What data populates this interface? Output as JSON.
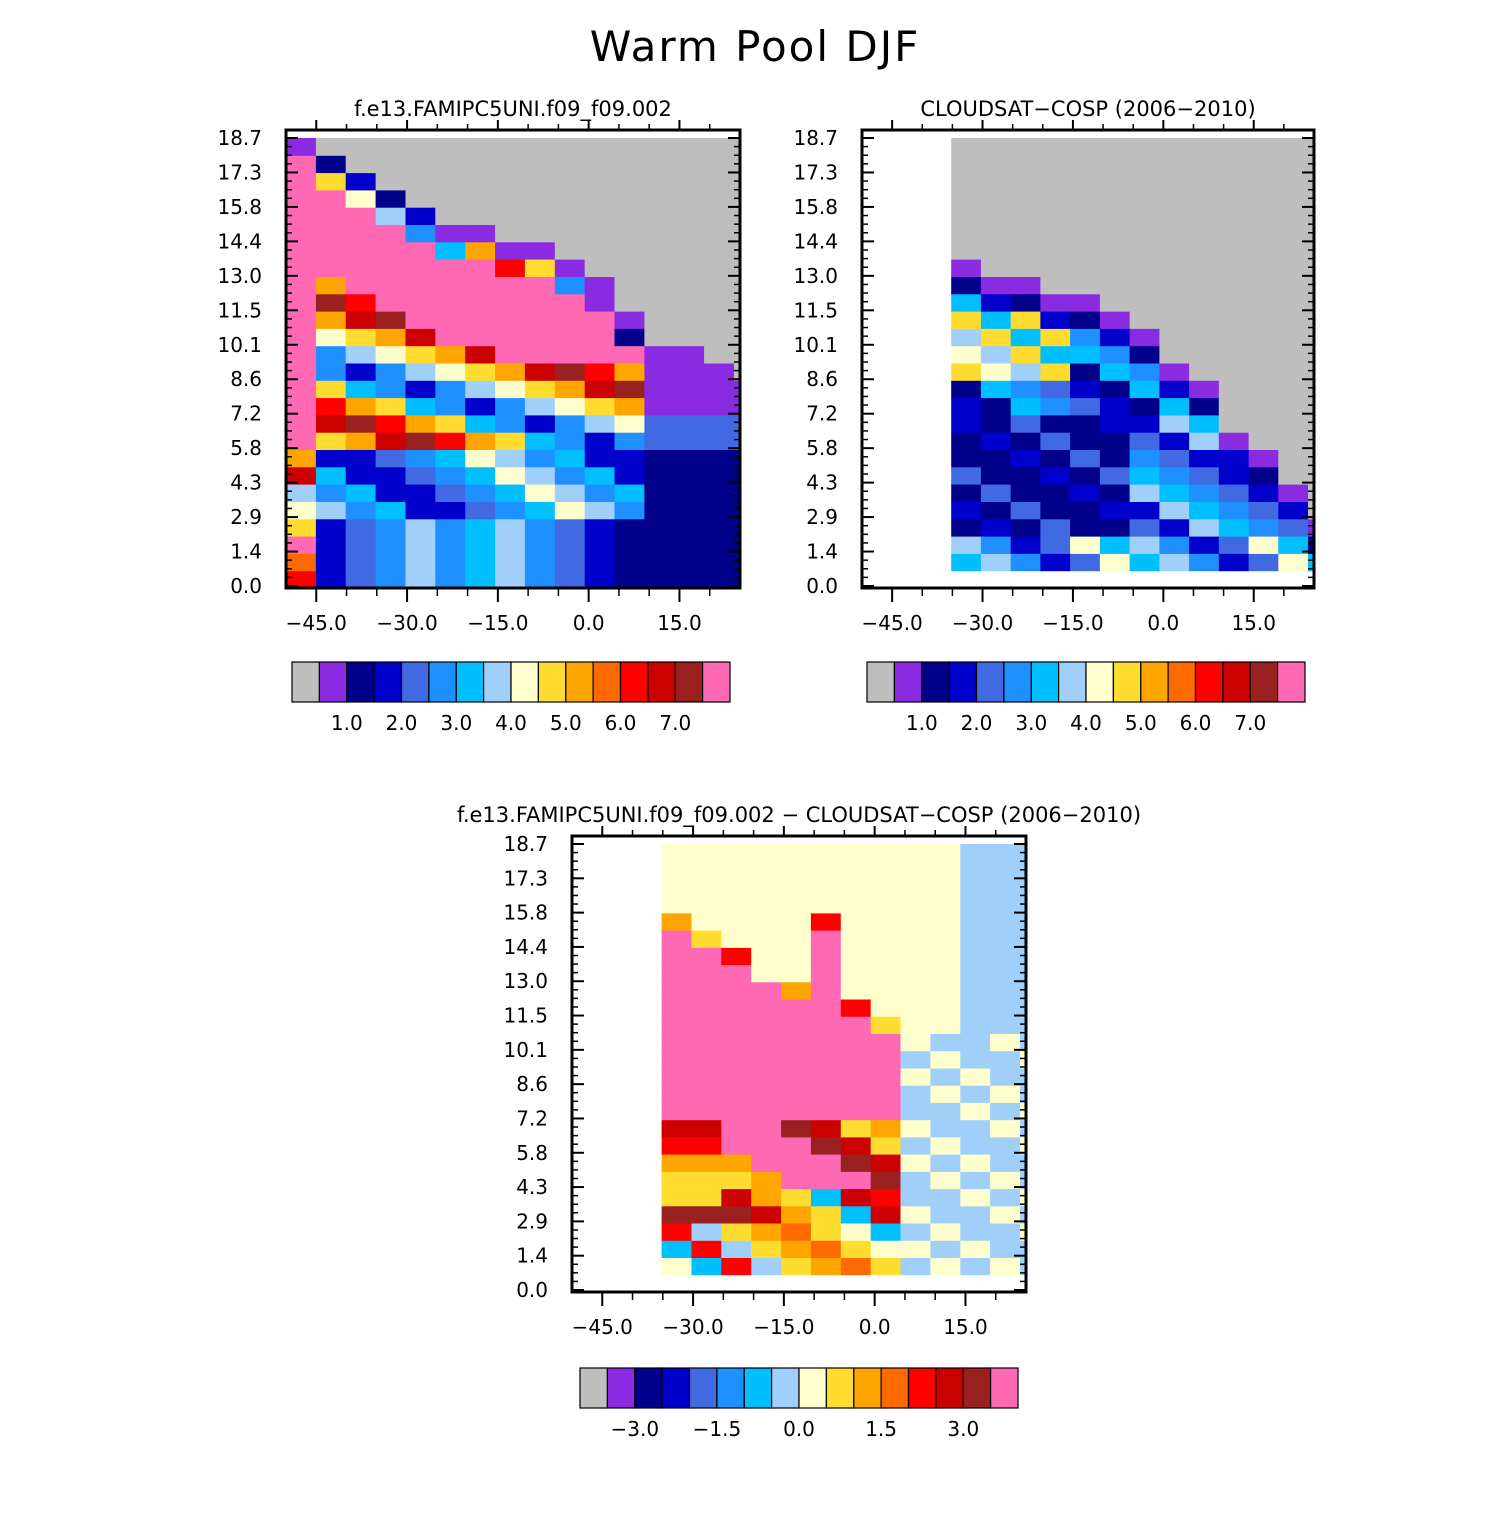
{
  "title": "Warm Pool DJF",
  "chart_data": [
    {
      "type": "heatmap",
      "title": "f.e13.FAMIPC5UNI.f09_f09.002",
      "x_ticks": [
        "−45.0",
        "−30.0",
        "−15.0",
        "0.0",
        "15.0"
      ],
      "x_tick_values": [
        -45,
        -30,
        -15,
        0,
        15
      ],
      "y_ticks": [
        "0.0",
        "1.4",
        "2.9",
        "4.3",
        "5.8",
        "7.2",
        "8.6",
        "10.1",
        "11.5",
        "13.0",
        "14.4",
        "15.8",
        "17.3",
        "18.7"
      ],
      "xlim": [
        -50,
        25
      ],
      "ylim": [
        0,
        19.5
      ],
      "colorbar": {
        "colors": [
          "#BEBEBE",
          "#8A2BE2",
          "#00008B",
          "#0000CD",
          "#4169E1",
          "#1E90FF",
          "#00BFFF",
          "#A0CFFA",
          "#FFFFCD",
          "#FFDD30",
          "#FFA500",
          "#FF6A00",
          "#FF0000",
          "#CD0000",
          "#9B2020",
          "#FF69B4"
        ],
        "labels": [
          "1.0",
          "2.0",
          "3.0",
          "4.0",
          "5.0",
          "6.0",
          "7.0"
        ],
        "label_boxes": [
          2,
          4,
          6,
          8,
          10,
          12,
          14
        ]
      }
    },
    {
      "type": "heatmap",
      "title": "CLOUDSAT−COSP (2006−2010)",
      "x_ticks": [
        "−45.0",
        "−30.0",
        "−15.0",
        "0.0",
        "15.0"
      ],
      "x_tick_values": [
        -45,
        -30,
        -15,
        0,
        15
      ],
      "y_ticks": [
        "0.0",
        "1.4",
        "2.9",
        "4.3",
        "5.8",
        "7.2",
        "8.6",
        "10.1",
        "11.5",
        "13.0",
        "14.4",
        "15.8",
        "17.3",
        "18.7"
      ],
      "xlim": [
        -50,
        25
      ],
      "ylim": [
        0,
        19.5
      ],
      "colorbar": {
        "colors": [
          "#BEBEBE",
          "#8A2BE2",
          "#00008B",
          "#0000CD",
          "#4169E1",
          "#1E90FF",
          "#00BFFF",
          "#A0CFFA",
          "#FFFFCD",
          "#FFDD30",
          "#FFA500",
          "#FF6A00",
          "#FF0000",
          "#CD0000",
          "#9B2020",
          "#FF69B4"
        ],
        "labels": [
          "1.0",
          "2.0",
          "3.0",
          "4.0",
          "5.0",
          "6.0",
          "7.0"
        ],
        "label_boxes": [
          2,
          4,
          6,
          8,
          10,
          12,
          14
        ]
      }
    },
    {
      "type": "heatmap",
      "title": "f.e13.FAMIPC5UNI.f09_f09.002 − CLOUDSAT−COSP (2006−2010)",
      "x_ticks": [
        "−45.0",
        "−30.0",
        "−15.0",
        "0.0",
        "15.0"
      ],
      "x_tick_values": [
        -45,
        -30,
        -15,
        0,
        15
      ],
      "y_ticks": [
        "0.0",
        "1.4",
        "2.9",
        "4.3",
        "5.8",
        "7.2",
        "8.6",
        "10.1",
        "11.5",
        "13.0",
        "14.4",
        "15.8",
        "17.3",
        "18.7"
      ],
      "xlim": [
        -50,
        25
      ],
      "ylim": [
        0,
        19.5
      ],
      "colorbar": {
        "colors": [
          "#BEBEBE",
          "#8A2BE2",
          "#00008B",
          "#0000CD",
          "#4169E1",
          "#1E90FF",
          "#00BFFF",
          "#A0CFFA",
          "#FFFFCD",
          "#FFDD30",
          "#FFA500",
          "#FF6A00",
          "#FF0000",
          "#CD0000",
          "#9B2020",
          "#FF69B4"
        ],
        "labels": [
          "−3.0",
          "−1.5",
          "0.0",
          "1.5",
          "3.0"
        ],
        "label_boxes": [
          2,
          5,
          8,
          11,
          14
        ]
      }
    }
  ]
}
